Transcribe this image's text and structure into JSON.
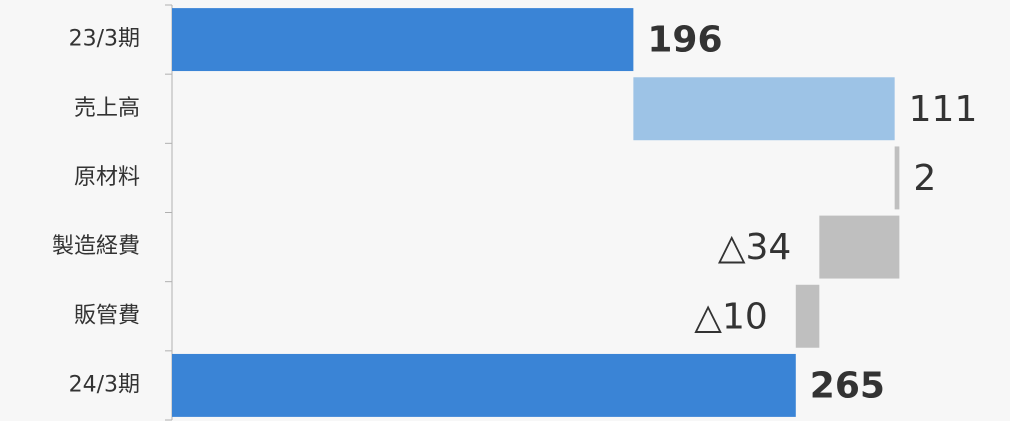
{
  "chart_data": {
    "type": "waterfall",
    "orientation": "horizontal",
    "categories": [
      "23/3期",
      "売上高",
      "原材料",
      "製造経費",
      "販管費",
      "24/3期"
    ],
    "values": [
      196,
      111,
      2,
      -34,
      -10,
      265
    ],
    "value_labels": [
      "196",
      "111",
      "2",
      "△34",
      "△10",
      "265"
    ],
    "measure": [
      "absolute",
      "relative",
      "relative",
      "relative",
      "relative",
      "absolute"
    ],
    "colors": [
      "#3a84d6",
      "#9dc3e6",
      "#bfbfbf",
      "#bfbfbf",
      "#bfbfbf",
      "#3a84d6"
    ],
    "xlim": [
      0,
      356
    ]
  }
}
